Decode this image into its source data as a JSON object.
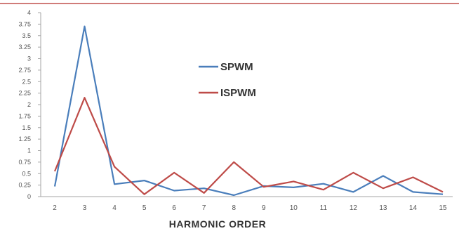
{
  "chart_data": {
    "type": "line",
    "title": "",
    "xlabel": "HARMONIC ORDER",
    "ylabel": "",
    "x": [
      2,
      3,
      4,
      5,
      6,
      7,
      8,
      9,
      10,
      11,
      12,
      13,
      14,
      15
    ],
    "x_tick_labels": [
      "2",
      "3",
      "4",
      "5",
      "6",
      "7",
      "8",
      "9",
      "10",
      "11",
      "12",
      "13",
      "14",
      "15"
    ],
    "ylim": [
      0,
      4
    ],
    "y_ticks": [
      0,
      0.25,
      0.5,
      0.75,
      1,
      1.25,
      1.5,
      1.75,
      2,
      2.25,
      2.5,
      2.75,
      3,
      3.25,
      3.5,
      3.75,
      4
    ],
    "y_tick_labels": [
      "0",
      "0.25",
      "0.5",
      "0.75",
      "1",
      "1.25",
      "1.5",
      "1.75",
      "2",
      "2.25",
      "2.5",
      "2.75",
      "3",
      "3.25",
      "3.5",
      "3.75",
      "4"
    ],
    "grid": false,
    "legend_position": "center",
    "series": [
      {
        "name": "SPWM",
        "color": "#4a7ebb",
        "values": [
          0.22,
          3.7,
          0.27,
          0.35,
          0.13,
          0.18,
          0.03,
          0.23,
          0.2,
          0.28,
          0.1,
          0.45,
          0.1,
          0.05
        ]
      },
      {
        "name": "ISPWM",
        "color": "#be4b48",
        "values": [
          0.55,
          2.15,
          0.65,
          0.05,
          0.52,
          0.08,
          0.75,
          0.21,
          0.33,
          0.15,
          0.52,
          0.18,
          0.42,
          0.1
        ]
      }
    ]
  }
}
